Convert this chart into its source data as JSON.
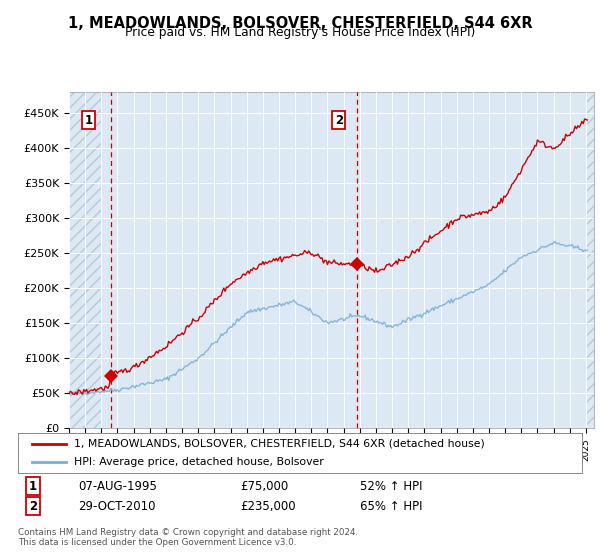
{
  "title": "1, MEADOWLANDS, BOLSOVER, CHESTERFIELD, S44 6XR",
  "subtitle": "Price paid vs. HM Land Registry's House Price Index (HPI)",
  "legend_line1": "1, MEADOWLANDS, BOLSOVER, CHESTERFIELD, S44 6XR (detached house)",
  "legend_line2": "HPI: Average price, detached house, Bolsover",
  "annotation1_date": "07-AUG-1995",
  "annotation1_price": "£75,000",
  "annotation1_hpi": "52% ↑ HPI",
  "annotation1_year": 1995.58,
  "annotation1_value": 75000,
  "annotation2_date": "29-OCT-2010",
  "annotation2_price": "£235,000",
  "annotation2_hpi": "65% ↑ HPI",
  "annotation2_year": 2010.83,
  "annotation2_value": 235000,
  "sale_color": "#cc0000",
  "hpi_color": "#7bafd4",
  "background_color": "#dce9f5",
  "hatch_color": "#b8c8d8",
  "ylim": [
    0,
    480000
  ],
  "yticks": [
    0,
    50000,
    100000,
    150000,
    200000,
    250000,
    300000,
    350000,
    400000,
    450000
  ],
  "footnote": "Contains HM Land Registry data © Crown copyright and database right 2024.\nThis data is licensed under the Open Government Licence v3.0.",
  "xmin": 1993.0,
  "xmax": 2025.5,
  "hatch_end": 1995.0
}
